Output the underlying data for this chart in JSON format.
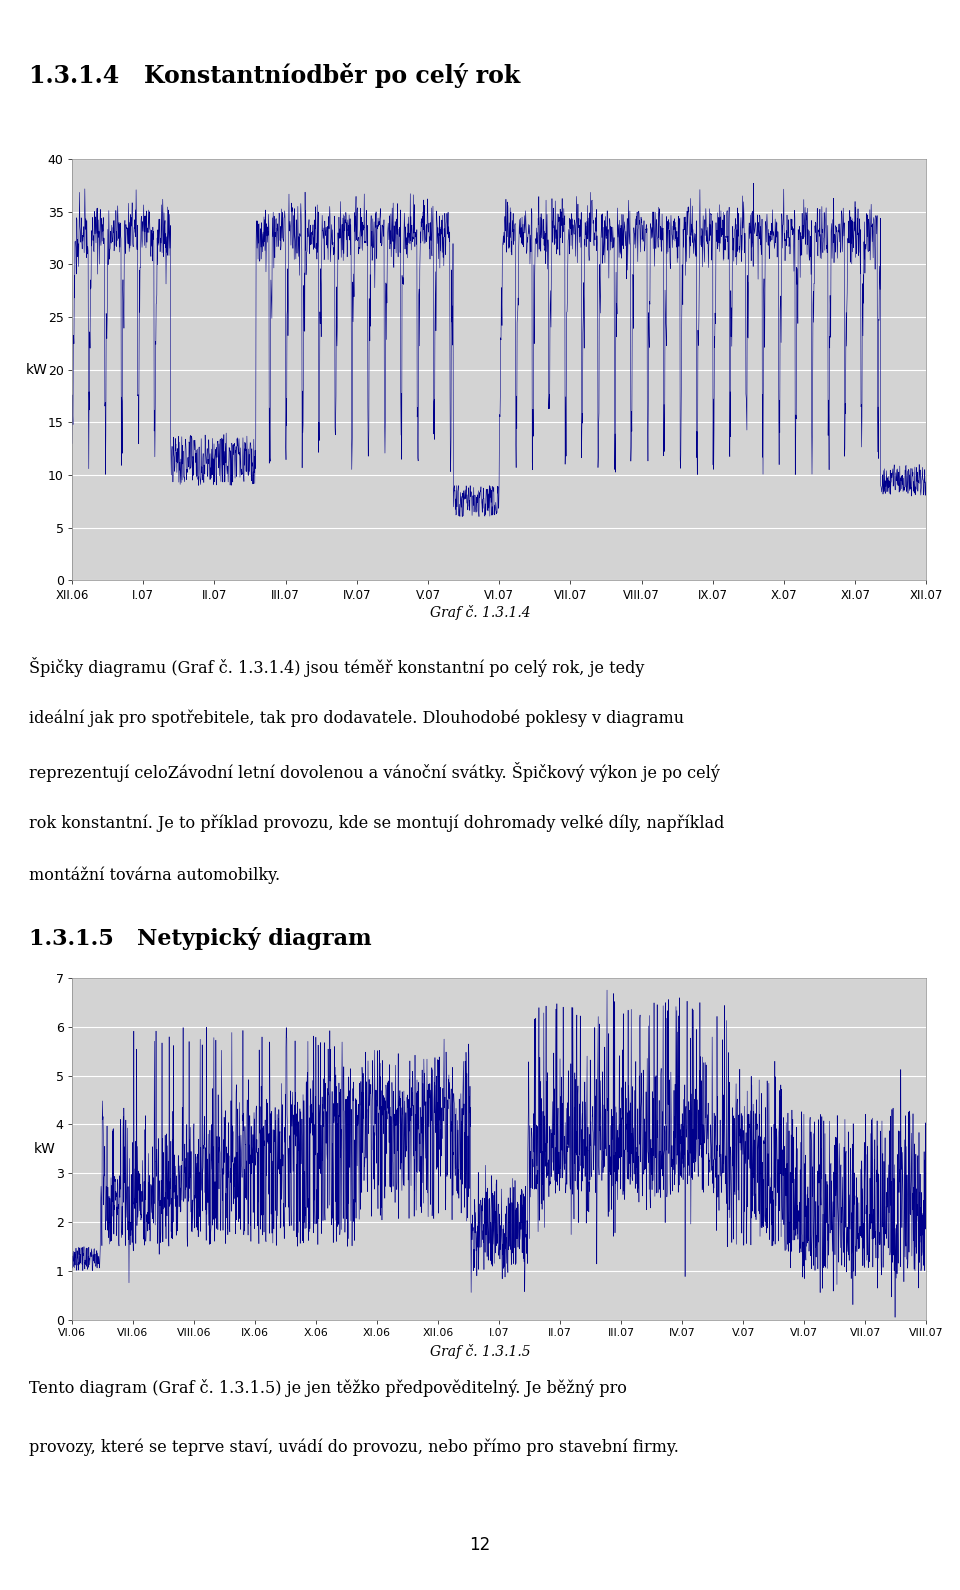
{
  "page_title1": "1.3.1.4   Konstantníodběr po celý rok",
  "section_title2": "1.3.1.5   Netypický diagram",
  "chart1_ylabel": "kW",
  "chart1_yticks": [
    0,
    5,
    10,
    15,
    20,
    25,
    30,
    35,
    40
  ],
  "chart1_ylim": [
    0,
    40
  ],
  "chart1_xticks": [
    "XII.06",
    "I.07",
    "II.07",
    "III.07",
    "IV.07",
    "V.07",
    "VI.07",
    "VII.07",
    "VIII.07",
    "IX.07",
    "X.07",
    "XI.07",
    "XII.07"
  ],
  "chart2_ylabel": "kW",
  "chart2_yticks": [
    0,
    1,
    2,
    3,
    4,
    5,
    6,
    7
  ],
  "chart2_ylim": [
    0,
    7
  ],
  "chart2_xticks": [
    "VI.06",
    "VII.06",
    "VIII.06",
    "IX.06",
    "X.06",
    "XI.06",
    "XII.06",
    "I.07",
    "II.07",
    "III.07",
    "IV.07",
    "V.07",
    "VI.07",
    "VII.07",
    "VIII.07"
  ],
  "graf_label1": "Graf č. 1.3.1.4",
  "graf_label2": "Graf č. 1.3.1.5",
  "text1_line1": "Špičky diagramu (Graf č. 1.3.1.4) jsou téměř konstantní po celý rok, je tedy",
  "text1_line2": "ideální jak pro spotřebitele, tak pro dodavatele. Dlouhodobé poklesy v diagramu",
  "text1_line3": "reprezentují celoZávodní letní dovolenou a vánoční svátky. Špičkový výkon je po celý",
  "text1_line4": "rok konstantní. Je to příklad provozu, kde se montují dohromady velké díly, například",
  "text1_line5": "montážní továrna automobilky.",
  "text2_line1": "Tento diagram (Graf č. 1.3.1.5) je jen těžko předpověditelný. Je běžný pro",
  "text2_line2": "provozy, které se teprve staví, uvádí do provozu, nebo přímo pro stavební firmy.",
  "page_number": "12",
  "line_color": "#00008B",
  "plot_bg_color": "#D3D3D3"
}
